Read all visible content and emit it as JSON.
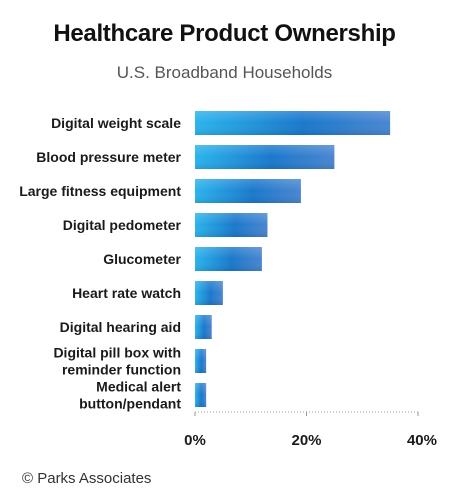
{
  "chart_data": {
    "type": "bar",
    "orientation": "horizontal",
    "title": "Healthcare Product Ownership",
    "subtitle": "U.S. Broadband Households",
    "categories": [
      "Digital weight scale",
      "Blood pressure meter",
      "Large fitness equipment",
      "Digital pedometer",
      "Glucometer",
      "Heart rate watch",
      "Digital hearing aid",
      "Digital pill box with reminder function",
      "Medical alert button/pendant"
    ],
    "category_lines": [
      [
        "Digital weight scale"
      ],
      [
        "Blood pressure meter"
      ],
      [
        "Large fitness equipment"
      ],
      [
        "Digital pedometer"
      ],
      [
        "Glucometer"
      ],
      [
        "Heart rate watch"
      ],
      [
        "Digital hearing aid"
      ],
      [
        "Digital pill box with",
        "reminder function"
      ],
      [
        "Medical alert",
        "button/pendant"
      ]
    ],
    "values": [
      35,
      25,
      19,
      13,
      12,
      5,
      3,
      2,
      2
    ],
    "xlim": [
      0,
      40
    ],
    "xticks": [
      0,
      20,
      40
    ],
    "tick_labels": [
      "0%",
      "20%",
      "40%"
    ],
    "grid": false,
    "colors": {
      "bar_light": "#2ab4ec",
      "bar_mid": "#1a78cc",
      "bar_end": "#4a86d0",
      "axis": "#999999"
    }
  },
  "footer": {
    "source": "© Parks Associates"
  }
}
